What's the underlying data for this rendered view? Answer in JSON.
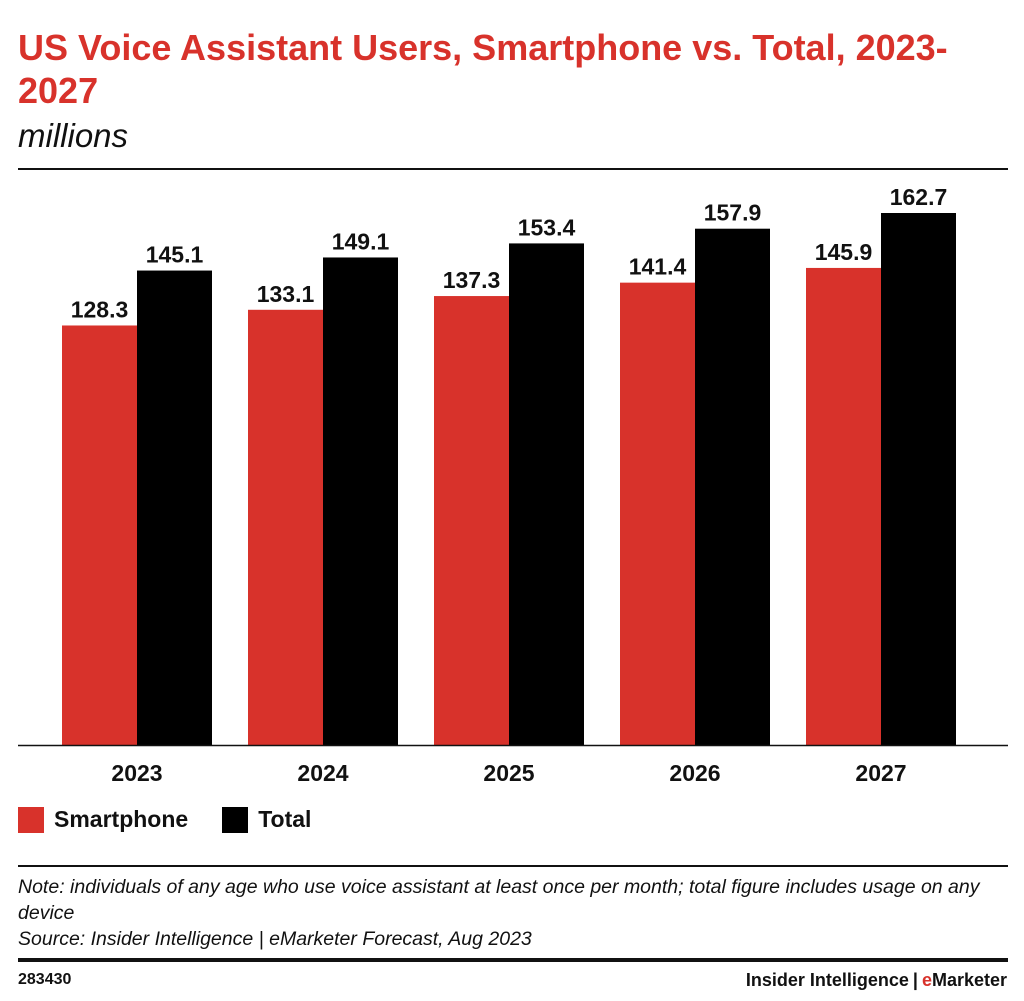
{
  "header": {
    "title": "US Voice Assistant Users, Smartphone vs. Total, 2023-2027",
    "subtitle": "millions"
  },
  "legend": {
    "items": [
      {
        "label": "Smartphone",
        "color": "#d8322b"
      },
      {
        "label": "Total",
        "color": "#000000"
      }
    ]
  },
  "notes": {
    "note": "Note: individuals of any age who use voice assistant at least once per month; total figure includes usage on any device",
    "source": "Source: Insider Intelligence | eMarketer Forecast, Aug 2023"
  },
  "footer": {
    "chart_id": "283430",
    "brand_main": "Insider Intelligence",
    "brand_sep": "|",
    "brand_e": "e",
    "brand_rest": "Marketer"
  },
  "chart_data": {
    "type": "bar",
    "title": "US Voice Assistant Users, Smartphone vs. Total, 2023-2027",
    "subtitle": "millions",
    "xlabel": "",
    "ylabel": "",
    "categories": [
      "2023",
      "2024",
      "2025",
      "2026",
      "2027"
    ],
    "series": [
      {
        "name": "Smartphone",
        "color": "#d8322b",
        "values": [
          128.3,
          133.1,
          137.3,
          141.4,
          145.9
        ],
        "labels": [
          "128.3",
          "133.1",
          "137.3",
          "141.4",
          "145.9"
        ]
      },
      {
        "name": "Total",
        "color": "#000000",
        "values": [
          145.1,
          149.1,
          153.4,
          157.9,
          162.7
        ],
        "labels": [
          "145.1",
          "149.1",
          "153.4",
          "157.9",
          "162.7"
        ]
      }
    ],
    "ylim": [
      0,
      162.7
    ],
    "grid": false,
    "legend_position": "bottom-left"
  }
}
